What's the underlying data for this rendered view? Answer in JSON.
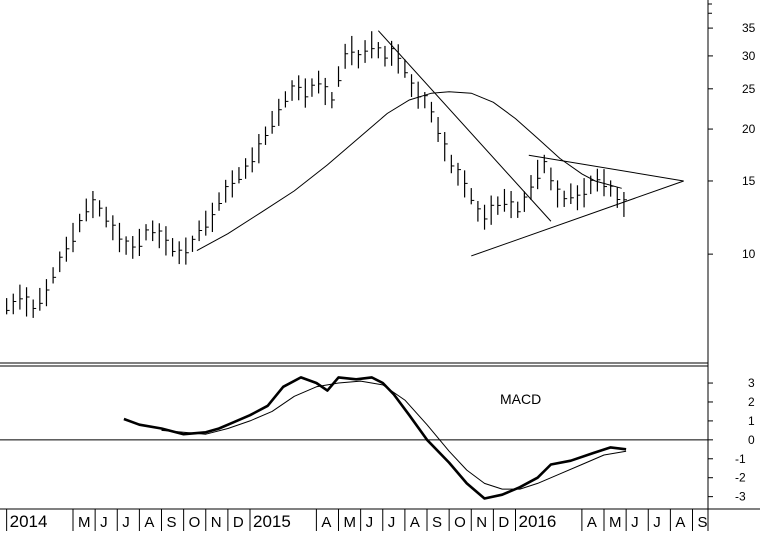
{
  "chart_data": [
    {
      "type": "ohlc",
      "title": "",
      "scale": "log",
      "ylim": [
        5.5,
        40
      ],
      "y_ticks": [
        "35",
        "30",
        "25",
        "20",
        "15",
        "10"
      ],
      "x_tick_labels": [
        "2014",
        "M",
        "J",
        "J",
        "A",
        "S",
        "O",
        "N",
        "D",
        "2015",
        "A",
        "M",
        "J",
        "J",
        "A",
        "S",
        "O",
        "N",
        "D",
        "2016",
        "A",
        "M",
        "J",
        "J",
        "A",
        "S"
      ],
      "x_tick_positions": [
        0,
        3,
        4,
        5,
        6,
        7,
        8,
        9,
        10,
        11,
        14,
        15,
        16,
        17,
        18,
        19,
        20,
        21,
        22,
        23,
        26,
        27,
        28,
        29,
        30,
        31
      ],
      "xlim": [
        -0.3,
        31.7
      ],
      "price_high_low_mid": [
        [
          0.0,
          7.5
        ],
        [
          0.3,
          7.6
        ],
        [
          0.6,
          7.9
        ],
        [
          0.9,
          7.7
        ],
        [
          1.2,
          7.4
        ],
        [
          1.5,
          7.8
        ],
        [
          1.8,
          8.1
        ],
        [
          2.1,
          8.9
        ],
        [
          2.4,
          9.6
        ],
        [
          2.7,
          10.3
        ],
        [
          3.0,
          11.0
        ],
        [
          3.3,
          11.9
        ],
        [
          3.6,
          12.8
        ],
        [
          3.9,
          13.2
        ],
        [
          4.2,
          12.9
        ],
        [
          4.5,
          12.3
        ],
        [
          4.8,
          11.6
        ],
        [
          5.1,
          11.0
        ],
        [
          5.4,
          10.5
        ],
        [
          5.7,
          10.4
        ],
        [
          6.0,
          10.7
        ],
        [
          6.3,
          11.3
        ],
        [
          6.6,
          11.4
        ],
        [
          6.9,
          11.1
        ],
        [
          7.2,
          10.8
        ],
        [
          7.5,
          10.4
        ],
        [
          7.8,
          10.1
        ],
        [
          8.1,
          10.2
        ],
        [
          8.4,
          10.6
        ],
        [
          8.7,
          11.4
        ],
        [
          9.0,
          11.9
        ],
        [
          9.3,
          12.3
        ],
        [
          9.6,
          13.4
        ],
        [
          9.9,
          14.2
        ],
        [
          10.2,
          14.8
        ],
        [
          10.5,
          15.5
        ],
        [
          10.8,
          16.1
        ],
        [
          11.1,
          16.9
        ],
        [
          11.4,
          18.0
        ],
        [
          11.7,
          19.3
        ],
        [
          12.0,
          20.8
        ],
        [
          12.3,
          22.0
        ],
        [
          12.6,
          23.6
        ],
        [
          12.9,
          24.8
        ],
        [
          13.2,
          25.2
        ],
        [
          13.5,
          24.5
        ],
        [
          13.8,
          25.2
        ],
        [
          14.1,
          26.0
        ],
        [
          14.4,
          24.7
        ],
        [
          14.7,
          23.5
        ],
        [
          15.0,
          26.8
        ],
        [
          15.3,
          30.0
        ],
        [
          15.6,
          31.0
        ],
        [
          15.9,
          29.5
        ],
        [
          16.2,
          30.8
        ],
        [
          16.5,
          32.0
        ],
        [
          16.8,
          31.0
        ],
        [
          17.1,
          30.0
        ],
        [
          17.4,
          30.5
        ],
        [
          17.7,
          29.6
        ],
        [
          18.0,
          28.0
        ],
        [
          18.3,
          25.5
        ],
        [
          18.6,
          24.2
        ],
        [
          18.9,
          23.5
        ],
        [
          19.2,
          22.0
        ],
        [
          19.5,
          20.0
        ],
        [
          19.8,
          18.2
        ],
        [
          20.1,
          16.5
        ],
        [
          20.4,
          15.6
        ],
        [
          20.7,
          14.8
        ],
        [
          21.0,
          13.8
        ],
        [
          21.3,
          12.7
        ],
        [
          21.6,
          12.3
        ],
        [
          21.9,
          12.8
        ],
        [
          22.2,
          13.1
        ],
        [
          22.5,
          13.5
        ],
        [
          22.8,
          13.2
        ],
        [
          23.1,
          12.8
        ],
        [
          23.4,
          13.4
        ],
        [
          23.7,
          14.5
        ],
        [
          24.0,
          15.6
        ],
        [
          24.3,
          16.5
        ],
        [
          24.6,
          15.2
        ],
        [
          24.9,
          14.0
        ],
        [
          25.2,
          13.6
        ],
        [
          25.5,
          14.0
        ],
        [
          25.8,
          13.7
        ],
        [
          26.1,
          14.1
        ],
        [
          26.4,
          14.7
        ],
        [
          26.7,
          15.1
        ],
        [
          27.0,
          14.9
        ],
        [
          27.3,
          14.4
        ],
        [
          27.6,
          13.7
        ],
        [
          27.9,
          13.2
        ]
      ],
      "moving_average": [
        [
          8.6,
          10.2
        ],
        [
          10.0,
          11.2
        ],
        [
          11.5,
          12.6
        ],
        [
          13.0,
          14.2
        ],
        [
          14.5,
          16.4
        ],
        [
          16.0,
          19.2
        ],
        [
          17.2,
          21.8
        ],
        [
          18.2,
          23.5
        ],
        [
          19.2,
          24.4
        ],
        [
          20.0,
          24.6
        ],
        [
          21.0,
          24.4
        ],
        [
          22.0,
          23.2
        ],
        [
          23.0,
          21.2
        ],
        [
          24.0,
          19.0
        ],
        [
          25.0,
          17.0
        ],
        [
          26.0,
          15.6
        ],
        [
          26.6,
          15.0
        ],
        [
          27.8,
          14.4
        ]
      ],
      "trendlines": [
        {
          "from": [
            16.8,
            34.5
          ],
          "to": [
            24.6,
            12.0
          ]
        },
        {
          "from": [
            21.0,
            9.9
          ],
          "to": [
            30.6,
            15.0
          ]
        },
        {
          "from": [
            23.6,
            17.3
          ],
          "to": [
            30.6,
            15.0
          ]
        }
      ]
    },
    {
      "type": "line",
      "title": "MACD",
      "ylim": [
        -3.6,
        3.9
      ],
      "y_ticks": [
        "3",
        "2",
        "1",
        "0",
        "-1",
        "-2",
        "-3"
      ],
      "zero_line": 0,
      "series": [
        {
          "name": "",
          "style": "thick",
          "points": [
            [
              5.3,
              1.1
            ],
            [
              6.0,
              0.8
            ],
            [
              7.0,
              0.6
            ],
            [
              8.0,
              0.3
            ],
            [
              9.0,
              0.4
            ],
            [
              9.6,
              0.6
            ],
            [
              10.2,
              0.9
            ],
            [
              11.0,
              1.3
            ],
            [
              11.8,
              1.8
            ],
            [
              12.5,
              2.8
            ],
            [
              13.3,
              3.3
            ],
            [
              14.0,
              3.0
            ],
            [
              14.5,
              2.6
            ],
            [
              15.0,
              3.3
            ],
            [
              15.8,
              3.2
            ],
            [
              16.5,
              3.3
            ],
            [
              17.0,
              3.0
            ],
            [
              17.5,
              2.4
            ],
            [
              18.2,
              1.3
            ],
            [
              19.0,
              0.0
            ],
            [
              20.0,
              -1.2
            ],
            [
              20.8,
              -2.3
            ],
            [
              21.6,
              -3.1
            ],
            [
              22.4,
              -2.9
            ],
            [
              23.2,
              -2.5
            ],
            [
              24.0,
              -2.0
            ],
            [
              24.6,
              -1.3
            ],
            [
              25.5,
              -1.1
            ],
            [
              26.5,
              -0.7
            ],
            [
              27.3,
              -0.4
            ],
            [
              28.0,
              -0.5
            ]
          ]
        },
        {
          "name": "",
          "style": "thin",
          "points": [
            [
              7.0,
              0.5
            ],
            [
              8.0,
              0.4
            ],
            [
              9.0,
              0.3
            ],
            [
              10.0,
              0.6
            ],
            [
              11.0,
              1.0
            ],
            [
              12.0,
              1.5
            ],
            [
              13.0,
              2.3
            ],
            [
              14.0,
              2.8
            ],
            [
              15.0,
              3.0
            ],
            [
              16.0,
              3.1
            ],
            [
              17.0,
              2.9
            ],
            [
              18.0,
              2.1
            ],
            [
              19.0,
              0.8
            ],
            [
              20.0,
              -0.6
            ],
            [
              20.8,
              -1.6
            ],
            [
              21.6,
              -2.3
            ],
            [
              22.4,
              -2.6
            ],
            [
              23.2,
              -2.6
            ],
            [
              24.0,
              -2.3
            ],
            [
              25.0,
              -1.8
            ],
            [
              26.0,
              -1.3
            ],
            [
              27.0,
              -0.8
            ],
            [
              28.0,
              -0.6
            ]
          ]
        }
      ]
    }
  ]
}
